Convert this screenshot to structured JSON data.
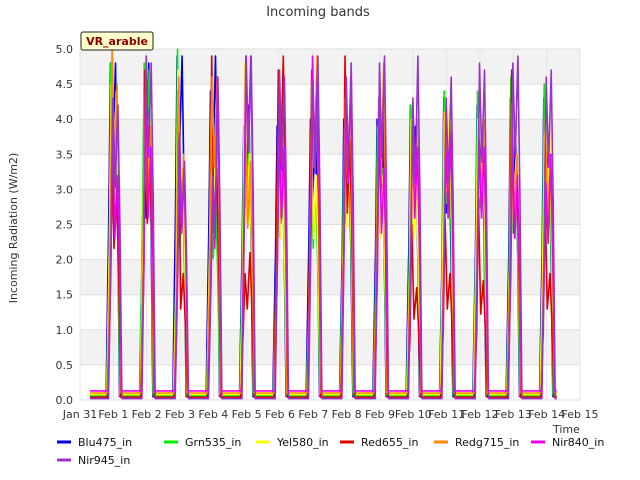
{
  "chart_data": {
    "type": "line",
    "title": "Incoming bands",
    "xlabel": "Time",
    "ylabel": "Incoming Radiation (W/m2)",
    "badge": "VR_arable",
    "ylim": [
      0,
      5
    ],
    "yticks": [
      "0.0",
      "0.5",
      "1.0",
      "1.5",
      "2.0",
      "2.5",
      "3.0",
      "3.5",
      "4.0",
      "4.5",
      "5.0"
    ],
    "xlim": [
      "Jan 31",
      "Feb 15"
    ],
    "xticks": [
      "Jan 31",
      "Feb 1",
      "Feb 2",
      "Feb 3",
      "Feb 4",
      "Feb 5",
      "Feb 6",
      "Feb 7",
      "Feb 8",
      "Feb 9",
      "Feb 10",
      "Feb 11",
      "Feb 12",
      "Feb 13",
      "Feb 14",
      "Feb 15"
    ],
    "grid": true,
    "legend_position": "bottom",
    "series": [
      {
        "name": "Blu475_in",
        "color": "#0000ee",
        "night": 0.05,
        "peaks": [
          [
            4.8,
            4.8
          ],
          [
            3.6,
            4.8
          ],
          [
            4.9,
            4.9
          ],
          [
            4.4,
            4.9
          ],
          [
            3.9,
            4.2
          ],
          [
            3.9,
            3.8
          ],
          [
            4.0,
            4.0
          ],
          [
            4.0,
            3.6
          ],
          [
            4.0,
            3.8
          ],
          [
            4.2,
            3.9
          ],
          [
            4.3,
            3.7
          ],
          [
            4.2,
            3.9
          ],
          [
            4.3,
            3.8
          ],
          [
            4.3,
            3.8
          ]
        ]
      },
      {
        "name": "Grn535_in",
        "color": "#00ee00",
        "night": 0.06,
        "peaks": [
          [
            4.8,
            3.5
          ],
          [
            4.8,
            4.7
          ],
          [
            5.0,
            3.0
          ],
          [
            3.2,
            2.8
          ],
          [
            3.8,
            3.9
          ],
          [
            3.3,
            3.2
          ],
          [
            3.8,
            3.0
          ],
          [
            3.9,
            3.5
          ],
          [
            3.9,
            3.3
          ],
          [
            4.2,
            3.4
          ],
          [
            4.4,
            3.9
          ],
          [
            4.4,
            3.8
          ],
          [
            4.6,
            3.3
          ],
          [
            4.5,
            3.4
          ]
        ]
      },
      {
        "name": "Yel580_in",
        "color": "#ffff00",
        "night": 0.08,
        "peaks": [
          [
            4.5,
            4.4
          ],
          [
            4.3,
            4.0
          ],
          [
            4.7,
            3.3
          ],
          [
            4.4,
            4.0
          ],
          [
            4.8,
            3.5
          ],
          [
            3.8,
            3.2
          ],
          [
            3.8,
            3.2
          ],
          [
            3.5,
            3.4
          ],
          [
            3.7,
            3.2
          ],
          [
            4.0,
            3.2
          ],
          [
            4.1,
            4.2
          ],
          [
            4.0,
            4.0
          ],
          [
            3.9,
            3.5
          ],
          [
            3.8,
            3.9
          ]
        ]
      },
      {
        "name": "Red655_in",
        "color": "#dd0000",
        "night": 0.04,
        "peaks": [
          [
            3.8,
            3.0
          ],
          [
            4.7,
            3.5
          ],
          [
            4.4,
            1.8
          ],
          [
            4.9,
            3.3
          ],
          [
            1.8,
            2.1
          ],
          [
            4.7,
            4.9
          ],
          [
            4.7,
            4.6
          ],
          [
            4.9,
            3.7
          ],
          [
            4.0,
            4.1
          ],
          [
            2.5,
            1.6
          ],
          [
            2.6,
            1.8
          ],
          [
            2.9,
            1.7
          ],
          [
            4.7,
            3.3
          ],
          [
            2.9,
            1.8
          ]
        ]
      },
      {
        "name": "Redg715_in",
        "color": "#ff8800",
        "night": 0.1,
        "peaks": [
          [
            5.0,
            4.5
          ],
          [
            4.4,
            3.9
          ],
          [
            4.6,
            3.5
          ],
          [
            4.6,
            4.6
          ],
          [
            3.9,
            3.4
          ],
          [
            3.8,
            3.5
          ],
          [
            4.6,
            4.9
          ],
          [
            4.3,
            4.4
          ],
          [
            4.3,
            4.8
          ],
          [
            4.1,
            4.0
          ],
          [
            4.1,
            3.9
          ],
          [
            4.0,
            4.0
          ],
          [
            4.2,
            3.5
          ],
          [
            4.0,
            3.5
          ]
        ]
      },
      {
        "name": "Nir840_in",
        "color": "#ee00ee",
        "night": 0.13,
        "peaks": [
          [
            4.0,
            3.2
          ],
          [
            4.7,
            3.6
          ],
          [
            3.7,
            3.3
          ],
          [
            3.0,
            4.6
          ],
          [
            4.9,
            4.9
          ],
          [
            3.8,
            3.6
          ],
          [
            4.9,
            4.7
          ],
          [
            4.3,
            4.5
          ],
          [
            4.3,
            3.3
          ],
          [
            3.9,
            3.6
          ],
          [
            3.6,
            3.8
          ],
          [
            3.7,
            3.6
          ],
          [
            3.8,
            3.2
          ],
          [
            3.1,
            3.5
          ]
        ]
      },
      {
        "name": "Nir945_in",
        "color": "#9933cc",
        "night": 0.02,
        "peaks": [
          [
            4.3,
            4.2
          ],
          [
            4.9,
            4.8
          ],
          [
            3.8,
            3.4
          ],
          [
            3.2,
            4.6
          ],
          [
            4.9,
            4.9
          ],
          [
            4.7,
            4.6
          ],
          [
            4.5,
            4.9
          ],
          [
            4.6,
            4.8
          ],
          [
            4.8,
            4.9
          ],
          [
            4.3,
            4.9
          ],
          [
            4.3,
            4.6
          ],
          [
            4.8,
            4.7
          ],
          [
            4.8,
            4.9
          ],
          [
            4.6,
            4.7
          ]
        ]
      }
    ]
  }
}
